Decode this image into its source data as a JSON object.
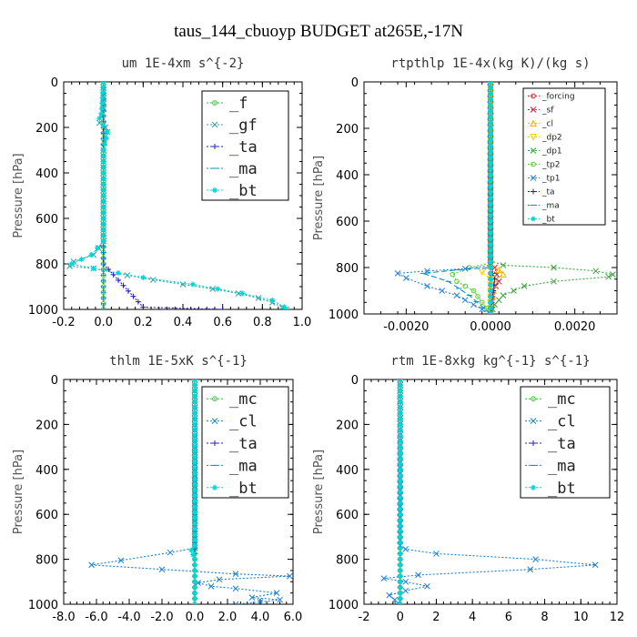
{
  "figure_title": "taus_144_cbuoyp  BUDGET at265E,-17N",
  "colors": {
    "forcing": "#e01b1b",
    "sf": "#d0204a",
    "cl": "#f0b400",
    "dp2": "#f0d000",
    "dp1": "#3aa63a",
    "tp2": "#55cc33",
    "tp1": "#2a7fd4",
    "ta": "#2020c0",
    "ma": "#0090c8",
    "bt": "#00d8d8",
    "f": "#30c030",
    "gf": "#30a0a0",
    "mc": "#30c030",
    "blue_cl": "#1a7fd4"
  },
  "chart_data": [
    {
      "type": "line",
      "title": "um  1E-4xm s^{-2}",
      "ylabel": "Pressure [hPa]",
      "xlim": [
        -0.2,
        1.0
      ],
      "ylim": [
        1000,
        0
      ],
      "xticks": [
        "-0.2",
        "0.0",
        "0.2",
        "0.4",
        "0.6",
        "0.8",
        "1.0"
      ],
      "xtick_values": [
        -0.2,
        0.0,
        0.2,
        0.4,
        0.6,
        0.8,
        1.0
      ],
      "yticks": [
        "0",
        "200",
        "400",
        "600",
        "800",
        "1000"
      ],
      "ytick_values": [
        0,
        200,
        400,
        600,
        800,
        1000
      ],
      "legend_position": "top-right",
      "legend_size": "large",
      "series": [
        {
          "name": "_f",
          "color_key": "f",
          "marker": "o",
          "points": [
            [
              0.0,
              0
            ],
            [
              0.0,
              200
            ],
            [
              0.0,
              400
            ],
            [
              0.0,
              600
            ],
            [
              0.0,
              800
            ],
            [
              0.0,
              1000
            ]
          ]
        },
        {
          "name": "_gf",
          "color_key": "gf",
          "marker": "x",
          "points": [
            [
              0.0,
              0
            ],
            [
              0.0,
              120
            ],
            [
              -0.01,
              150
            ],
            [
              -0.02,
              180
            ],
            [
              0.01,
              200
            ],
            [
              0.02,
              220
            ],
            [
              0.01,
              240
            ],
            [
              0.0,
              300
            ],
            [
              0.0,
              500
            ],
            [
              0.0,
              650
            ],
            [
              0.0,
              700
            ],
            [
              -0.05,
              760
            ],
            [
              -0.15,
              790
            ],
            [
              -0.17,
              810
            ],
            [
              -0.05,
              820
            ],
            [
              0.12,
              850
            ],
            [
              0.25,
              870
            ],
            [
              0.4,
              890
            ],
            [
              0.55,
              910
            ],
            [
              0.68,
              930
            ],
            [
              0.78,
              950
            ],
            [
              0.85,
              970
            ],
            [
              0.9,
              990
            ],
            [
              0.92,
              1000
            ]
          ]
        },
        {
          "name": "_ta",
          "color_key": "ta",
          "marker": "+",
          "points": [
            [
              0.0,
              0
            ],
            [
              0.0,
              800
            ],
            [
              0.2,
              990
            ],
            [
              0.6,
              1000
            ]
          ]
        },
        {
          "name": "_ma",
          "color_key": "ma",
          "marker": "-",
          "points": [
            [
              0.0,
              0
            ],
            [
              0.0,
              1000
            ]
          ]
        },
        {
          "name": "_bt",
          "color_key": "bt",
          "marker": "*",
          "points": [
            [
              0.0,
              0
            ],
            [
              -0.01,
              140
            ],
            [
              -0.02,
              160
            ],
            [
              0.02,
              220
            ],
            [
              0.0,
              300
            ],
            [
              0.0,
              700
            ],
            [
              -0.06,
              760
            ],
            [
              -0.16,
              800
            ],
            [
              -0.05,
              820
            ],
            [
              0.2,
              860
            ],
            [
              0.45,
              890
            ],
            [
              0.7,
              930
            ],
            [
              0.85,
              960
            ],
            [
              0.91,
              990
            ],
            [
              0.92,
              1000
            ]
          ]
        }
      ]
    },
    {
      "type": "line",
      "title": "rtpthlp  1E-4x(kg K)/(kg s)",
      "ylabel": "Pressure [hPa]",
      "xlim": [
        -0.003,
        0.003
      ],
      "ylim": [
        1000,
        0
      ],
      "xticks": [
        "-0.0020",
        "0.0000",
        "0.0020"
      ],
      "xtick_values": [
        -0.002,
        0.0,
        0.002
      ],
      "yticks": [
        "0",
        "200",
        "400",
        "600",
        "800",
        "1000"
      ],
      "ytick_values": [
        0,
        200,
        400,
        600,
        800,
        1000
      ],
      "legend_position": "top-right",
      "legend_size": "small",
      "series": [
        {
          "name": "_forcing",
          "color_key": "forcing",
          "marker": "o",
          "points": [
            [
              0.0,
              0
            ],
            [
              0.0,
              1000
            ]
          ]
        },
        {
          "name": "_sf",
          "color_key": "sf",
          "marker": "x",
          "points": [
            [
              0.0,
              0
            ],
            [
              0.0,
              780
            ],
            [
              0.0001,
              800
            ],
            [
              0.0002,
              860
            ],
            [
              5e-05,
              900
            ],
            [
              0.0,
              1000
            ]
          ]
        },
        {
          "name": "_cl",
          "color_key": "cl",
          "marker": "^",
          "points": [
            [
              0.0,
              0
            ],
            [
              0.0,
              790
            ],
            [
              0.0002,
              810
            ],
            [
              0.0003,
              830
            ],
            [
              0.0001,
              850
            ],
            [
              0.0,
              1000
            ]
          ]
        },
        {
          "name": "_dp2",
          "color_key": "dp2",
          "marker": "v",
          "points": [
            [
              0.0,
              0
            ],
            [
              0.0,
              790
            ],
            [
              -0.0002,
              820
            ],
            [
              0.0,
              850
            ],
            [
              0.0,
              1000
            ]
          ]
        },
        {
          "name": "_dp1",
          "color_key": "dp1",
          "marker": "x",
          "points": [
            [
              0.0,
              0
            ],
            [
              0.0,
              770
            ],
            [
              0.0003,
              790
            ],
            [
              0.0015,
              800
            ],
            [
              0.0025,
              815
            ],
            [
              0.0029,
              830
            ],
            [
              0.0028,
              840
            ],
            [
              0.0015,
              860
            ],
            [
              0.0008,
              880
            ],
            [
              0.0003,
              920
            ],
            [
              0.0001,
              960
            ],
            [
              0.0,
              1000
            ]
          ]
        },
        {
          "name": "_tp2",
          "color_key": "tp2",
          "marker": "o",
          "points": [
            [
              0.0,
              0
            ],
            [
              0.0,
              780
            ],
            [
              -0.0005,
              800
            ],
            [
              -0.0009,
              830
            ],
            [
              -0.0008,
              860
            ],
            [
              -0.0004,
              900
            ],
            [
              -0.0002,
              950
            ],
            [
              0.0,
              1000
            ]
          ]
        },
        {
          "name": "_tp1",
          "color_key": "tp1",
          "marker": "x",
          "points": [
            [
              0.0,
              0
            ],
            [
              0.0,
              790
            ],
            [
              -0.0006,
              805
            ],
            [
              -0.0015,
              815
            ],
            [
              -0.0022,
              825
            ],
            [
              -0.002,
              845
            ],
            [
              -0.0015,
              880
            ],
            [
              -0.0008,
              920
            ],
            [
              -0.0004,
              960
            ],
            [
              0.0,
              1000
            ]
          ]
        },
        {
          "name": "_ta",
          "color_key": "ta",
          "marker": "+",
          "points": [
            [
              0.0,
              0
            ],
            [
              0.0,
              800
            ],
            [
              0.0001,
              850
            ],
            [
              0.0,
              1000
            ]
          ]
        },
        {
          "name": "_ma",
          "color_key": "ma",
          "marker": "-",
          "points": [
            [
              0.0,
              0
            ],
            [
              0.0,
              800
            ],
            [
              -0.0008,
              810
            ],
            [
              -0.0016,
              825
            ],
            [
              -0.001,
              860
            ],
            [
              -0.0005,
              920
            ],
            [
              0.0,
              1000
            ]
          ]
        },
        {
          "name": "_bt",
          "color_key": "bt",
          "marker": "*",
          "points": [
            [
              0.0,
              0
            ],
            [
              0.0,
              1000
            ]
          ]
        }
      ]
    },
    {
      "type": "line",
      "title": "thlm  1E-5xK s^{-1}",
      "ylabel": "Pressure [hPa]",
      "xlim": [
        -8.0,
        6.0
      ],
      "ylim": [
        1000,
        0
      ],
      "xticks": [
        "-8.0",
        "-6.0",
        "-4.0",
        "-2.0",
        "0.0",
        "2.0",
        "4.0",
        "6.0"
      ],
      "xtick_values": [
        -8,
        -6,
        -4,
        -2,
        0,
        2,
        4,
        6
      ],
      "yticks": [
        "0",
        "200",
        "400",
        "600",
        "800",
        "1000"
      ],
      "ytick_values": [
        0,
        200,
        400,
        600,
        800,
        1000
      ],
      "legend_position": "top-right",
      "legend_size": "large",
      "series": [
        {
          "name": "_mc",
          "color_key": "mc",
          "marker": "o",
          "points": [
            [
              0.0,
              0
            ],
            [
              0.0,
              1000
            ]
          ]
        },
        {
          "name": "_cl",
          "color_key": "blue_cl",
          "marker": "x",
          "points": [
            [
              0.0,
              0
            ],
            [
              0.0,
              750
            ],
            [
              -1.5,
              770
            ],
            [
              -4.5,
              805
            ],
            [
              -6.3,
              825
            ],
            [
              -2.0,
              845
            ],
            [
              2.5,
              865
            ],
            [
              5.8,
              875
            ],
            [
              1.5,
              890
            ],
            [
              0.2,
              905
            ],
            [
              1.0,
              920
            ],
            [
              2.5,
              930
            ],
            [
              5.0,
              950
            ],
            [
              3.5,
              970
            ],
            [
              5.2,
              980
            ],
            [
              4.0,
              990
            ],
            [
              2.5,
              1000
            ]
          ]
        },
        {
          "name": "_ta",
          "color_key": "ta",
          "marker": "+",
          "points": [
            [
              0.0,
              0
            ],
            [
              0.0,
              1000
            ]
          ]
        },
        {
          "name": "_ma",
          "color_key": "ma",
          "marker": "-",
          "points": [
            [
              0.0,
              0
            ],
            [
              0.0,
              1000
            ]
          ]
        },
        {
          "name": "_bt",
          "color_key": "bt",
          "marker": "*",
          "points": [
            [
              0.0,
              0
            ],
            [
              0.0,
              740
            ],
            [
              -0.2,
              760
            ],
            [
              0.0,
              800
            ],
            [
              0.0,
              1000
            ]
          ]
        }
      ]
    },
    {
      "type": "line",
      "title": "rtm  1E-8xkg kg^{-1} s^{-1}",
      "ylabel": "Pressure [hPa]",
      "xlim": [
        -2,
        12
      ],
      "ylim": [
        1000,
        0
      ],
      "xticks": [
        "-2",
        "0",
        "2",
        "4",
        "6",
        "8",
        "10",
        "12"
      ],
      "xtick_values": [
        -2,
        0,
        2,
        4,
        6,
        8,
        10,
        12
      ],
      "yticks": [
        "0",
        "200",
        "400",
        "600",
        "800",
        "1000"
      ],
      "ytick_values": [
        0,
        200,
        400,
        600,
        800,
        1000
      ],
      "legend_position": "top-right",
      "legend_size": "large",
      "series": [
        {
          "name": "_mc",
          "color_key": "mc",
          "marker": "o",
          "points": [
            [
              0.0,
              0
            ],
            [
              0.0,
              1000
            ]
          ]
        },
        {
          "name": "_cl",
          "color_key": "blue_cl",
          "marker": "x",
          "points": [
            [
              0.0,
              0
            ],
            [
              0.0,
              740
            ],
            [
              0.3,
              755
            ],
            [
              2.0,
              775
            ],
            [
              7.5,
              800
            ],
            [
              10.8,
              825
            ],
            [
              7.2,
              845
            ],
            [
              1.0,
              870
            ],
            [
              -0.9,
              885
            ],
            [
              0.3,
              900
            ],
            [
              1.5,
              920
            ],
            [
              0.3,
              940
            ],
            [
              -0.6,
              960
            ],
            [
              -0.3,
              980
            ],
            [
              -0.2,
              1000
            ]
          ]
        },
        {
          "name": "_ta",
          "color_key": "ta",
          "marker": "+",
          "points": [
            [
              0.0,
              0
            ],
            [
              0.0,
              1000
            ]
          ]
        },
        {
          "name": "_ma",
          "color_key": "ma",
          "marker": "-",
          "points": [
            [
              0.0,
              0
            ],
            [
              0.0,
              1000
            ]
          ]
        },
        {
          "name": "_bt",
          "color_key": "bt",
          "marker": "*",
          "points": [
            [
              0.0,
              0
            ],
            [
              0.0,
              1000
            ]
          ]
        }
      ]
    }
  ]
}
